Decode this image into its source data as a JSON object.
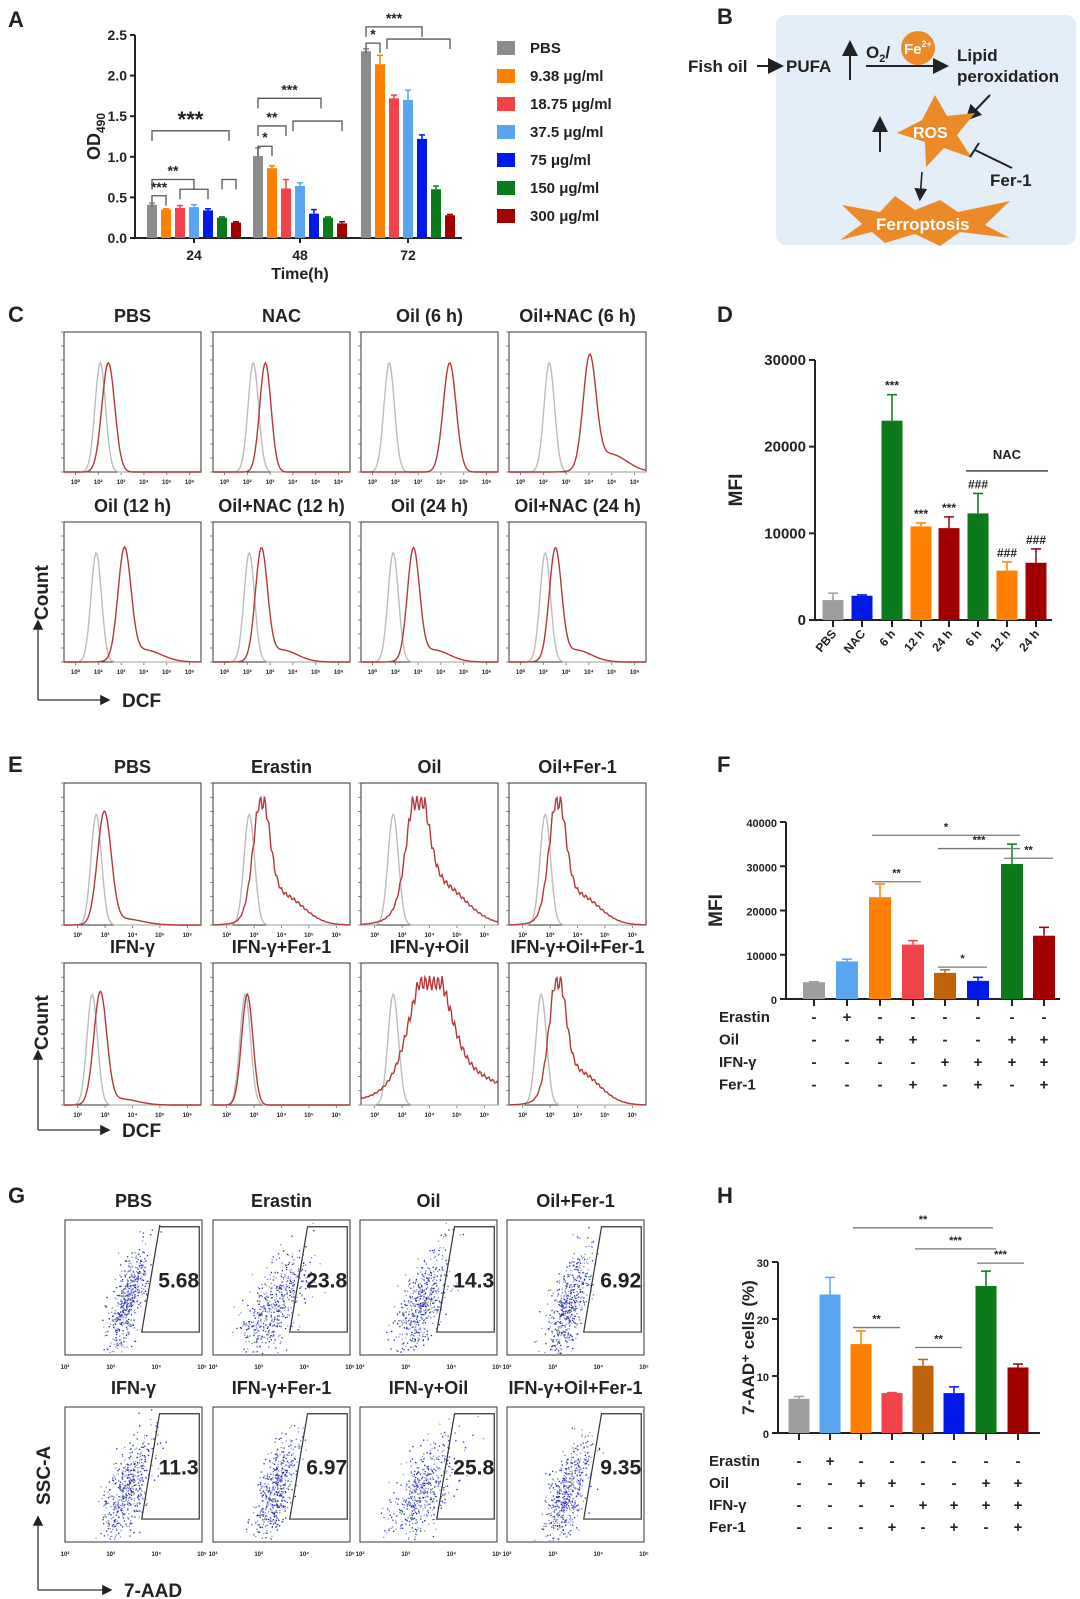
{
  "panels": {
    "A": "A",
    "B": "B",
    "C": "C",
    "D": "D",
    "E": "E",
    "F": "F",
    "G": "G",
    "H": "H"
  },
  "colors": {
    "gray": "#8c8c8c",
    "orange": "#ff8000",
    "red": "#f2434a",
    "lightblue": "#5aa5f0",
    "blue": "#0019e6",
    "green": "#0a7a1a",
    "darkred": "#a00000",
    "brown": "#c0640a",
    "histGray": "#bdbdbd",
    "histRed": "#b5393a",
    "diagramBg": "#e4eef8",
    "diagramOrange": "#ec8a2a"
  },
  "chart_data": [
    {
      "id": "A",
      "type": "bar",
      "title": "",
      "xlabel": "Time(h)",
      "ylabel": "OD",
      "ylabel_sub": "490",
      "ylim": [
        0,
        2.5
      ],
      "yticks": [
        "0.0",
        "0.5",
        "1.0",
        "1.5",
        "2.0",
        "2.5"
      ],
      "categories": [
        "24",
        "48",
        "72"
      ],
      "series": [
        {
          "name": "PBS",
          "color": "#8c8c8c",
          "values": [
            0.41,
            1.01,
            2.3
          ],
          "err": [
            0.02,
            0.1,
            0.03
          ]
        },
        {
          "name": "9.38 μg/ml",
          "color": "#ff8000",
          "values": [
            0.35,
            0.86,
            2.14
          ],
          "err": [
            0.01,
            0.03,
            0.11
          ]
        },
        {
          "name": "18.75 μg/ml",
          "color": "#f2434a",
          "values": [
            0.37,
            0.61,
            1.72
          ],
          "err": [
            0.03,
            0.11,
            0.04
          ]
        },
        {
          "name": "37.5 μg/ml",
          "color": "#5aa5f0",
          "values": [
            0.38,
            0.64,
            1.7
          ],
          "err": [
            0.03,
            0.04,
            0.12
          ]
        },
        {
          "name": "75 μg/ml",
          "color": "#0019e6",
          "values": [
            0.34,
            0.3,
            1.22
          ],
          "err": [
            0.02,
            0.05,
            0.05
          ]
        },
        {
          "name": "150 μg/ml",
          "color": "#0a7a1a",
          "values": [
            0.25,
            0.25,
            0.6
          ],
          "err": [
            0.01,
            0.01,
            0.04
          ]
        },
        {
          "name": "300 μg/ml",
          "color": "#a00000",
          "values": [
            0.19,
            0.18,
            0.28
          ],
          "err": [
            0.01,
            0.02,
            0.01
          ]
        }
      ],
      "significance": [
        {
          "group": 0,
          "a": 0,
          "b": 1,
          "y": 0.52,
          "label": "***"
        },
        {
          "group": 0,
          "a": 0,
          "b": 3,
          "y": 0.72,
          "label": "**"
        },
        {
          "group": 0,
          "a": 2,
          "b": 4,
          "y": 0.6,
          "label": ""
        },
        {
          "group": 0,
          "a": 0,
          "b": 5.5,
          "y": 1.32,
          "label": "***"
        },
        {
          "group": 0,
          "a": 5,
          "b": 6,
          "y": 0.72,
          "label": ""
        },
        {
          "group": 1,
          "a": 0,
          "b": 1,
          "y": 1.13,
          "label": "*"
        },
        {
          "group": 1,
          "a": 0,
          "b": 2,
          "y": 1.38,
          "label": "**"
        },
        {
          "group": 1,
          "a": 0,
          "b": 4.5,
          "y": 1.72,
          "label": "***"
        },
        {
          "group": 1,
          "a": 2.5,
          "b": 6,
          "y": 1.44,
          "label": ""
        },
        {
          "group": 2,
          "a": 0,
          "b": 1,
          "y": 2.4,
          "label": "*"
        },
        {
          "group": 2,
          "a": 0,
          "b": 4,
          "y": 2.6,
          "label": "***"
        },
        {
          "group": 2,
          "a": 1.5,
          "b": 6,
          "y": 2.45,
          "label": ""
        }
      ],
      "legend_position": "right"
    },
    {
      "id": "D",
      "type": "bar",
      "ylabel": "MFI",
      "ylim": [
        0,
        30000
      ],
      "yticks": [
        "0",
        "10000",
        "20000",
        "30000"
      ],
      "categories": [
        "PBS",
        "NAC",
        "6 h",
        "12 h",
        "24 h",
        "6 h",
        "12 h",
        "24 h"
      ],
      "values": [
        2300,
        2800,
        23000,
        10800,
        10600,
        12300,
        5700,
        6600
      ],
      "err": [
        800,
        100,
        3000,
        400,
        1300,
        2300,
        1000,
        1600
      ],
      "colors": [
        "#9e9e9e",
        "#0019e6",
        "#0a7a1a",
        "#ff8000",
        "#a00000",
        "#0a7a1a",
        "#ff8000",
        "#a00000"
      ],
      "labels": [
        "",
        "",
        "***",
        "***",
        "***",
        "###",
        "###",
        "###"
      ],
      "group_line": {
        "label": "NAC",
        "from": 5,
        "to": 7,
        "y": 17200
      }
    },
    {
      "id": "F",
      "type": "bar",
      "ylabel": "MFI",
      "ylim": [
        0,
        40000
      ],
      "yticks": [
        "0",
        "10000",
        "20000",
        "30000",
        "40000"
      ],
      "values": [
        3800,
        8500,
        23000,
        12300,
        5900,
        4100,
        30500,
        14300
      ],
      "err": [
        100,
        500,
        3000,
        900,
        700,
        800,
        4500,
        1900
      ],
      "colors": [
        "#9e9e9e",
        "#5aa5f0",
        "#ff8000",
        "#f2434a",
        "#c0640a",
        "#0019e6",
        "#0a7a1a",
        "#a00000"
      ],
      "conditions": [
        {
          "name": "Erastin",
          "signs": [
            "-",
            "+",
            "-",
            "-",
            "-",
            "-",
            "-",
            "-"
          ]
        },
        {
          "name": "Oil",
          "signs": [
            "-",
            "-",
            "+",
            "+",
            "-",
            "-",
            "+",
            "+"
          ]
        },
        {
          "name": "IFN-γ",
          "signs": [
            "-",
            "-",
            "-",
            "-",
            "+",
            "+",
            "+",
            "+"
          ]
        },
        {
          "name": "Fer-1",
          "signs": [
            "-",
            "-",
            "-",
            "+",
            "-",
            "+",
            "-",
            "+"
          ]
        }
      ],
      "significance": [
        {
          "a": 2,
          "b": 6,
          "y": 37000,
          "label": "*"
        },
        {
          "a": 4,
          "b": 6,
          "y": 34000,
          "label": "***"
        },
        {
          "a": 6,
          "b": 7,
          "y": 31800,
          "label": "**"
        },
        {
          "a": 2,
          "b": 3,
          "y": 26500,
          "label": "**"
        },
        {
          "a": 4,
          "b": 5,
          "y": 7200,
          "label": "*"
        }
      ]
    },
    {
      "id": "H",
      "type": "bar",
      "ylabel": "7-AAD⁺ cells (%)",
      "ylim": [
        0,
        30
      ],
      "yticks": [
        "0",
        "10",
        "20",
        "30"
      ],
      "values": [
        6.0,
        24.3,
        15.6,
        7.0,
        11.8,
        7.0,
        25.8,
        11.5
      ],
      "err": [
        0.4,
        3.0,
        2.3,
        0.1,
        1.1,
        1.1,
        2.6,
        0.6
      ],
      "colors": [
        "#9e9e9e",
        "#5aa5f0",
        "#ff8000",
        "#f2434a",
        "#c0640a",
        "#0019e6",
        "#0a7a1a",
        "#a00000"
      ],
      "conditions": [
        {
          "name": "Erastin",
          "signs": [
            "-",
            "+",
            "-",
            "-",
            "-",
            "-",
            "-",
            "-"
          ]
        },
        {
          "name": "Oil",
          "signs": [
            "-",
            "-",
            "+",
            "+",
            "-",
            "-",
            "+",
            "+"
          ]
        },
        {
          "name": "IFN-γ",
          "signs": [
            "-",
            "-",
            "-",
            "-",
            "+",
            "+",
            "+",
            "+"
          ]
        },
        {
          "name": "Fer-1",
          "signs": [
            "-",
            "-",
            "-",
            "+",
            "-",
            "+",
            "-",
            "+"
          ]
        }
      ],
      "significance": [
        {
          "a": 2,
          "b": 6,
          "y": 36,
          "label": "**"
        },
        {
          "a": 4,
          "b": 6.1,
          "y": 32.3,
          "label": "***"
        },
        {
          "a": 6,
          "b": 7,
          "y": 29.8,
          "label": "***"
        },
        {
          "a": 2,
          "b": 3,
          "y": 18.5,
          "label": "**"
        },
        {
          "a": 4,
          "b": 5,
          "y": 15,
          "label": "**"
        }
      ]
    },
    {
      "id": "C",
      "type": "histogram",
      "xlabel": "DCF",
      "ylabel": "Count",
      "xticks": [
        "10⁰",
        "10²",
        "10³",
        "10⁴",
        "10⁵",
        "10⁶"
      ],
      "plots": [
        {
          "title": "PBS",
          "gray": 2.7,
          "red": 2.9,
          "redWidth": 0.16,
          "tail": 0
        },
        {
          "title": "NAC",
          "gray": 2.8,
          "red": 3.1,
          "redWidth": 0.14,
          "tail": 0
        },
        {
          "title": "Oil (6 h)",
          "gray": 2.5,
          "red": 4.0,
          "redWidth": 0.16,
          "tail": 0
        },
        {
          "title": "Oil+NAC (6 h)",
          "gray": 2.8,
          "red": 3.8,
          "redWidth": 0.16,
          "tail": 0.3
        },
        {
          "title": "Oil (12 h)",
          "gray": 2.6,
          "red": 3.3,
          "redWidth": 0.16,
          "tail": 0.2
        },
        {
          "title": "Oil+NAC (12 h)",
          "gray": 2.7,
          "red": 3.0,
          "redWidth": 0.15,
          "tail": 0.2
        },
        {
          "title": "Oil (24 h)",
          "gray": 2.6,
          "red": 3.1,
          "redWidth": 0.15,
          "tail": 0.2
        },
        {
          "title": "Oil+NAC (24 h)",
          "gray": 2.7,
          "red": 2.95,
          "redWidth": 0.15,
          "tail": 0.2
        }
      ]
    },
    {
      "id": "E",
      "type": "histogram",
      "xlabel": "DCF",
      "ylabel": "Count",
      "xticks": [
        "10²",
        "10³",
        "10⁴",
        "10⁵",
        "10⁶"
      ],
      "plots": [
        {
          "title": "PBS",
          "gray": 2.6,
          "red": 2.8,
          "redWidth": 0.17,
          "tail": 0.1
        },
        {
          "title": "Erastin",
          "gray": 2.7,
          "red": 3.0,
          "redWidth": 0.2,
          "tail": 0.5
        },
        {
          "title": "Oil",
          "gray": 2.6,
          "red": 3.2,
          "redWidth": 0.25,
          "tail": 0.7
        },
        {
          "title": "Oil+Fer-1",
          "gray": 2.7,
          "red": 3.0,
          "redWidth": 0.2,
          "tail": 0.5
        },
        {
          "title": "IFN-γ",
          "gray": 2.5,
          "red": 2.7,
          "redWidth": 0.16,
          "tail": 0.1
        },
        {
          "title": "IFN-γ+Fer-1",
          "gray": 2.6,
          "red": 2.65,
          "redWidth": 0.14,
          "tail": 0
        },
        {
          "title": "IFN-γ+Oil",
          "gray": 2.6,
          "red": 3.5,
          "redWidth": 0.45,
          "tail": 0.6
        },
        {
          "title": "IFN-γ+Oil+Fer-1",
          "gray": 2.6,
          "red": 3.0,
          "redWidth": 0.2,
          "tail": 0.55
        }
      ]
    },
    {
      "id": "G",
      "type": "scatter",
      "xlabel": "7-AAD",
      "ylabel": "SSC-A",
      "xticks": [
        "10²",
        "10³",
        "10⁴",
        "10⁵"
      ],
      "plots": [
        {
          "title": "PBS",
          "gate_percent": "5.68",
          "spread": 0.8
        },
        {
          "title": "Erastin",
          "gate_percent": "23.8",
          "spread": 1.3
        },
        {
          "title": "Oil",
          "gate_percent": "14.3",
          "spread": 1.1
        },
        {
          "title": "Oil+Fer-1",
          "gate_percent": "6.92",
          "spread": 0.85
        },
        {
          "title": "IFN-γ",
          "gate_percent": "11.3",
          "spread": 1.0
        },
        {
          "title": "IFN-γ+Fer-1",
          "gate_percent": "6.97",
          "spread": 0.85
        },
        {
          "title": "IFN-γ+Oil",
          "gate_percent": "25.8",
          "spread": 1.35
        },
        {
          "title": "IFN-γ+Oil+Fer-1",
          "gate_percent": "9.35",
          "spread": 0.95
        }
      ]
    }
  ],
  "diagram": {
    "fish_oil": "Fish oil",
    "pufa": "PUFA",
    "o2": "O",
    "o2_sub": "2",
    "slash": "/",
    "fe": "Fe",
    "fe_sup": "2+",
    "lipid": "Lipid",
    "peroxidation": "peroxidation",
    "ros": "ROS",
    "fer1": "Fer-1",
    "ferroptosis": "Ferroptosis"
  }
}
